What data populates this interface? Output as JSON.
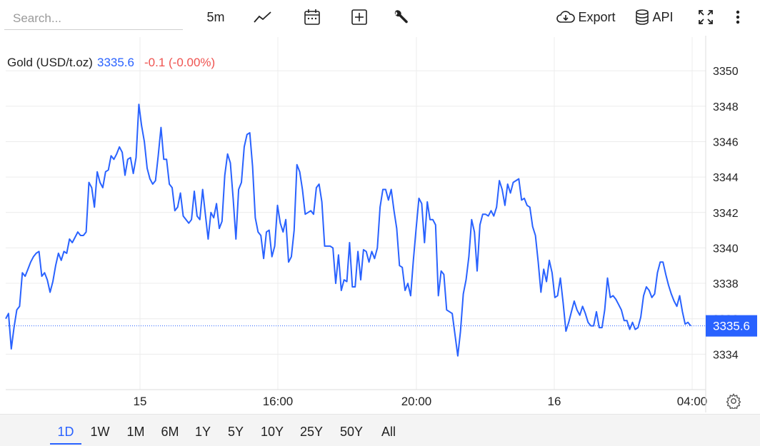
{
  "search": {
    "placeholder": "Search..."
  },
  "toolbar": {
    "interval_label": "5m",
    "chart_type_icon": "line-chart-icon",
    "calendar_icon": "calendar-icon",
    "compare_icon": "plus-square-icon",
    "settings_icon": "wrench-icon",
    "export_label": "Export",
    "api_label": "API",
    "fullscreen_icon": "fullscreen-icon",
    "more_icon": "more-vertical-icon"
  },
  "legend": {
    "name": "Gold (USD/t.oz)",
    "price": "3335.6",
    "change": "-0.1 (-0.00%)",
    "price_color": "#2962ff",
    "change_color": "#ef5350"
  },
  "ranges": [
    "1D",
    "1W",
    "1M",
    "6M",
    "1Y",
    "5Y",
    "10Y",
    "25Y",
    "50Y",
    "All"
  ],
  "active_range": "1D",
  "chart_data": {
    "type": "line",
    "title": "Gold (USD/t.oz)",
    "xlabel": "",
    "ylabel": "",
    "x_ticks": [
      "15",
      "16:00",
      "20:00",
      "16",
      "04:00"
    ],
    "y_ticks": [
      "3334",
      "3336",
      "3338",
      "3340",
      "3342",
      "3344",
      "3346",
      "3348",
      "3350"
    ],
    "ylim": [
      3332,
      3351.9
    ],
    "grid": true,
    "line_color": "#2962ff",
    "last_value": 3335.6,
    "last_value_label": "3335.6",
    "series": [
      {
        "values": [
          3336.0,
          3336.3,
          3334.3,
          3335.5,
          3336.5,
          3336.7,
          3338.6,
          3338.4,
          3338.8,
          3339.2,
          3339.5,
          3339.7,
          3339.8,
          3338.4,
          3338.6,
          3338.2,
          3337.5,
          3338.1,
          3339.0,
          3339.7,
          3339.3,
          3339.8,
          3339.7,
          3340.5,
          3340.3,
          3340.6,
          3340.9,
          3340.7,
          3340.7,
          3340.9,
          3343.7,
          3343.4,
          3342.3,
          3344.3,
          3343.7,
          3343.4,
          3344.3,
          3344.4,
          3345.2,
          3345.0,
          3345.3,
          3345.7,
          3345.4,
          3344.1,
          3345.0,
          3345.1,
          3344.2,
          3345.1,
          3348.1,
          3346.9,
          3346.0,
          3344.5,
          3343.9,
          3343.6,
          3343.8,
          3345.2,
          3346.8,
          3345.0,
          3345.0,
          3343.6,
          3343.4,
          3342.1,
          3342.3,
          3343.1,
          3341.8,
          3341.6,
          3341.4,
          3341.6,
          3343.2,
          3341.8,
          3341.6,
          3343.3,
          3341.9,
          3340.5,
          3342.0,
          3341.7,
          3342.5,
          3341.1,
          3341.5,
          3344.1,
          3345.3,
          3344.8,
          3342.8,
          3340.5,
          3343.3,
          3343.7,
          3345.7,
          3346.4,
          3346.5,
          3344.6,
          3341.7,
          3340.9,
          3340.7,
          3339.4,
          3340.9,
          3341.0,
          3339.5,
          3340.1,
          3342.4,
          3341.4,
          3340.9,
          3341.6,
          3339.2,
          3339.5,
          3341.0,
          3344.7,
          3344.3,
          3343.3,
          3341.9,
          3342.0,
          3342.1,
          3341.9,
          3343.4,
          3343.6,
          3342.6,
          3340.1,
          3340.1,
          3340.1,
          3340.0,
          3338.0,
          3339.6,
          3337.6,
          3338.2,
          3338.1,
          3340.3,
          3337.8,
          3337.8,
          3339.8,
          3338.2,
          3339.9,
          3339.8,
          3339.2,
          3339.8,
          3339.4,
          3340.0,
          3342.3,
          3343.3,
          3343.3,
          3342.7,
          3343.3,
          3342.1,
          3341.1,
          3339.0,
          3338.9,
          3337.6,
          3338.0,
          3337.3,
          3339.3,
          3341.1,
          3342.8,
          3342.5,
          3340.3,
          3342.6,
          3341.6,
          3341.6,
          3341.3,
          3337.3,
          3338.7,
          3338.5,
          3336.5,
          3336.4,
          3336.3,
          3335.1,
          3333.9,
          3335.3,
          3337.4,
          3338.2,
          3339.5,
          3341.6,
          3340.9,
          3338.7,
          3341.3,
          3341.9,
          3341.9,
          3341.8,
          3342.1,
          3341.8,
          3342.3,
          3343.8,
          3343.3,
          3342.4,
          3343.6,
          3343.1,
          3343.7,
          3343.8,
          3343.9,
          3342.7,
          3342.8,
          3342.4,
          3342.3,
          3341.2,
          3340.7,
          3339.2,
          3337.5,
          3338.8,
          3338.1,
          3339.3,
          3338.6,
          3337.2,
          3337.3,
          3338.3,
          3336.9,
          3335.3,
          3335.8,
          3336.4,
          3337.0,
          3336.5,
          3336.2,
          3336.7,
          3336.3,
          3335.8,
          3335.6,
          3335.6,
          3336.4,
          3335.5,
          3335.5,
          3336.5,
          3338.3,
          3337.2,
          3337.3,
          3337.1,
          3336.8,
          3336.5,
          3335.9,
          3335.9,
          3335.4,
          3335.8,
          3335.4,
          3335.5,
          3336.1,
          3337.3,
          3337.8,
          3337.6,
          3337.2,
          3337.4,
          3338.6,
          3339.2,
          3339.2,
          3338.5,
          3337.9,
          3337.4,
          3337.0,
          3336.7,
          3337.3,
          3336.4,
          3335.7,
          3335.8,
          3335.6
        ]
      }
    ]
  }
}
